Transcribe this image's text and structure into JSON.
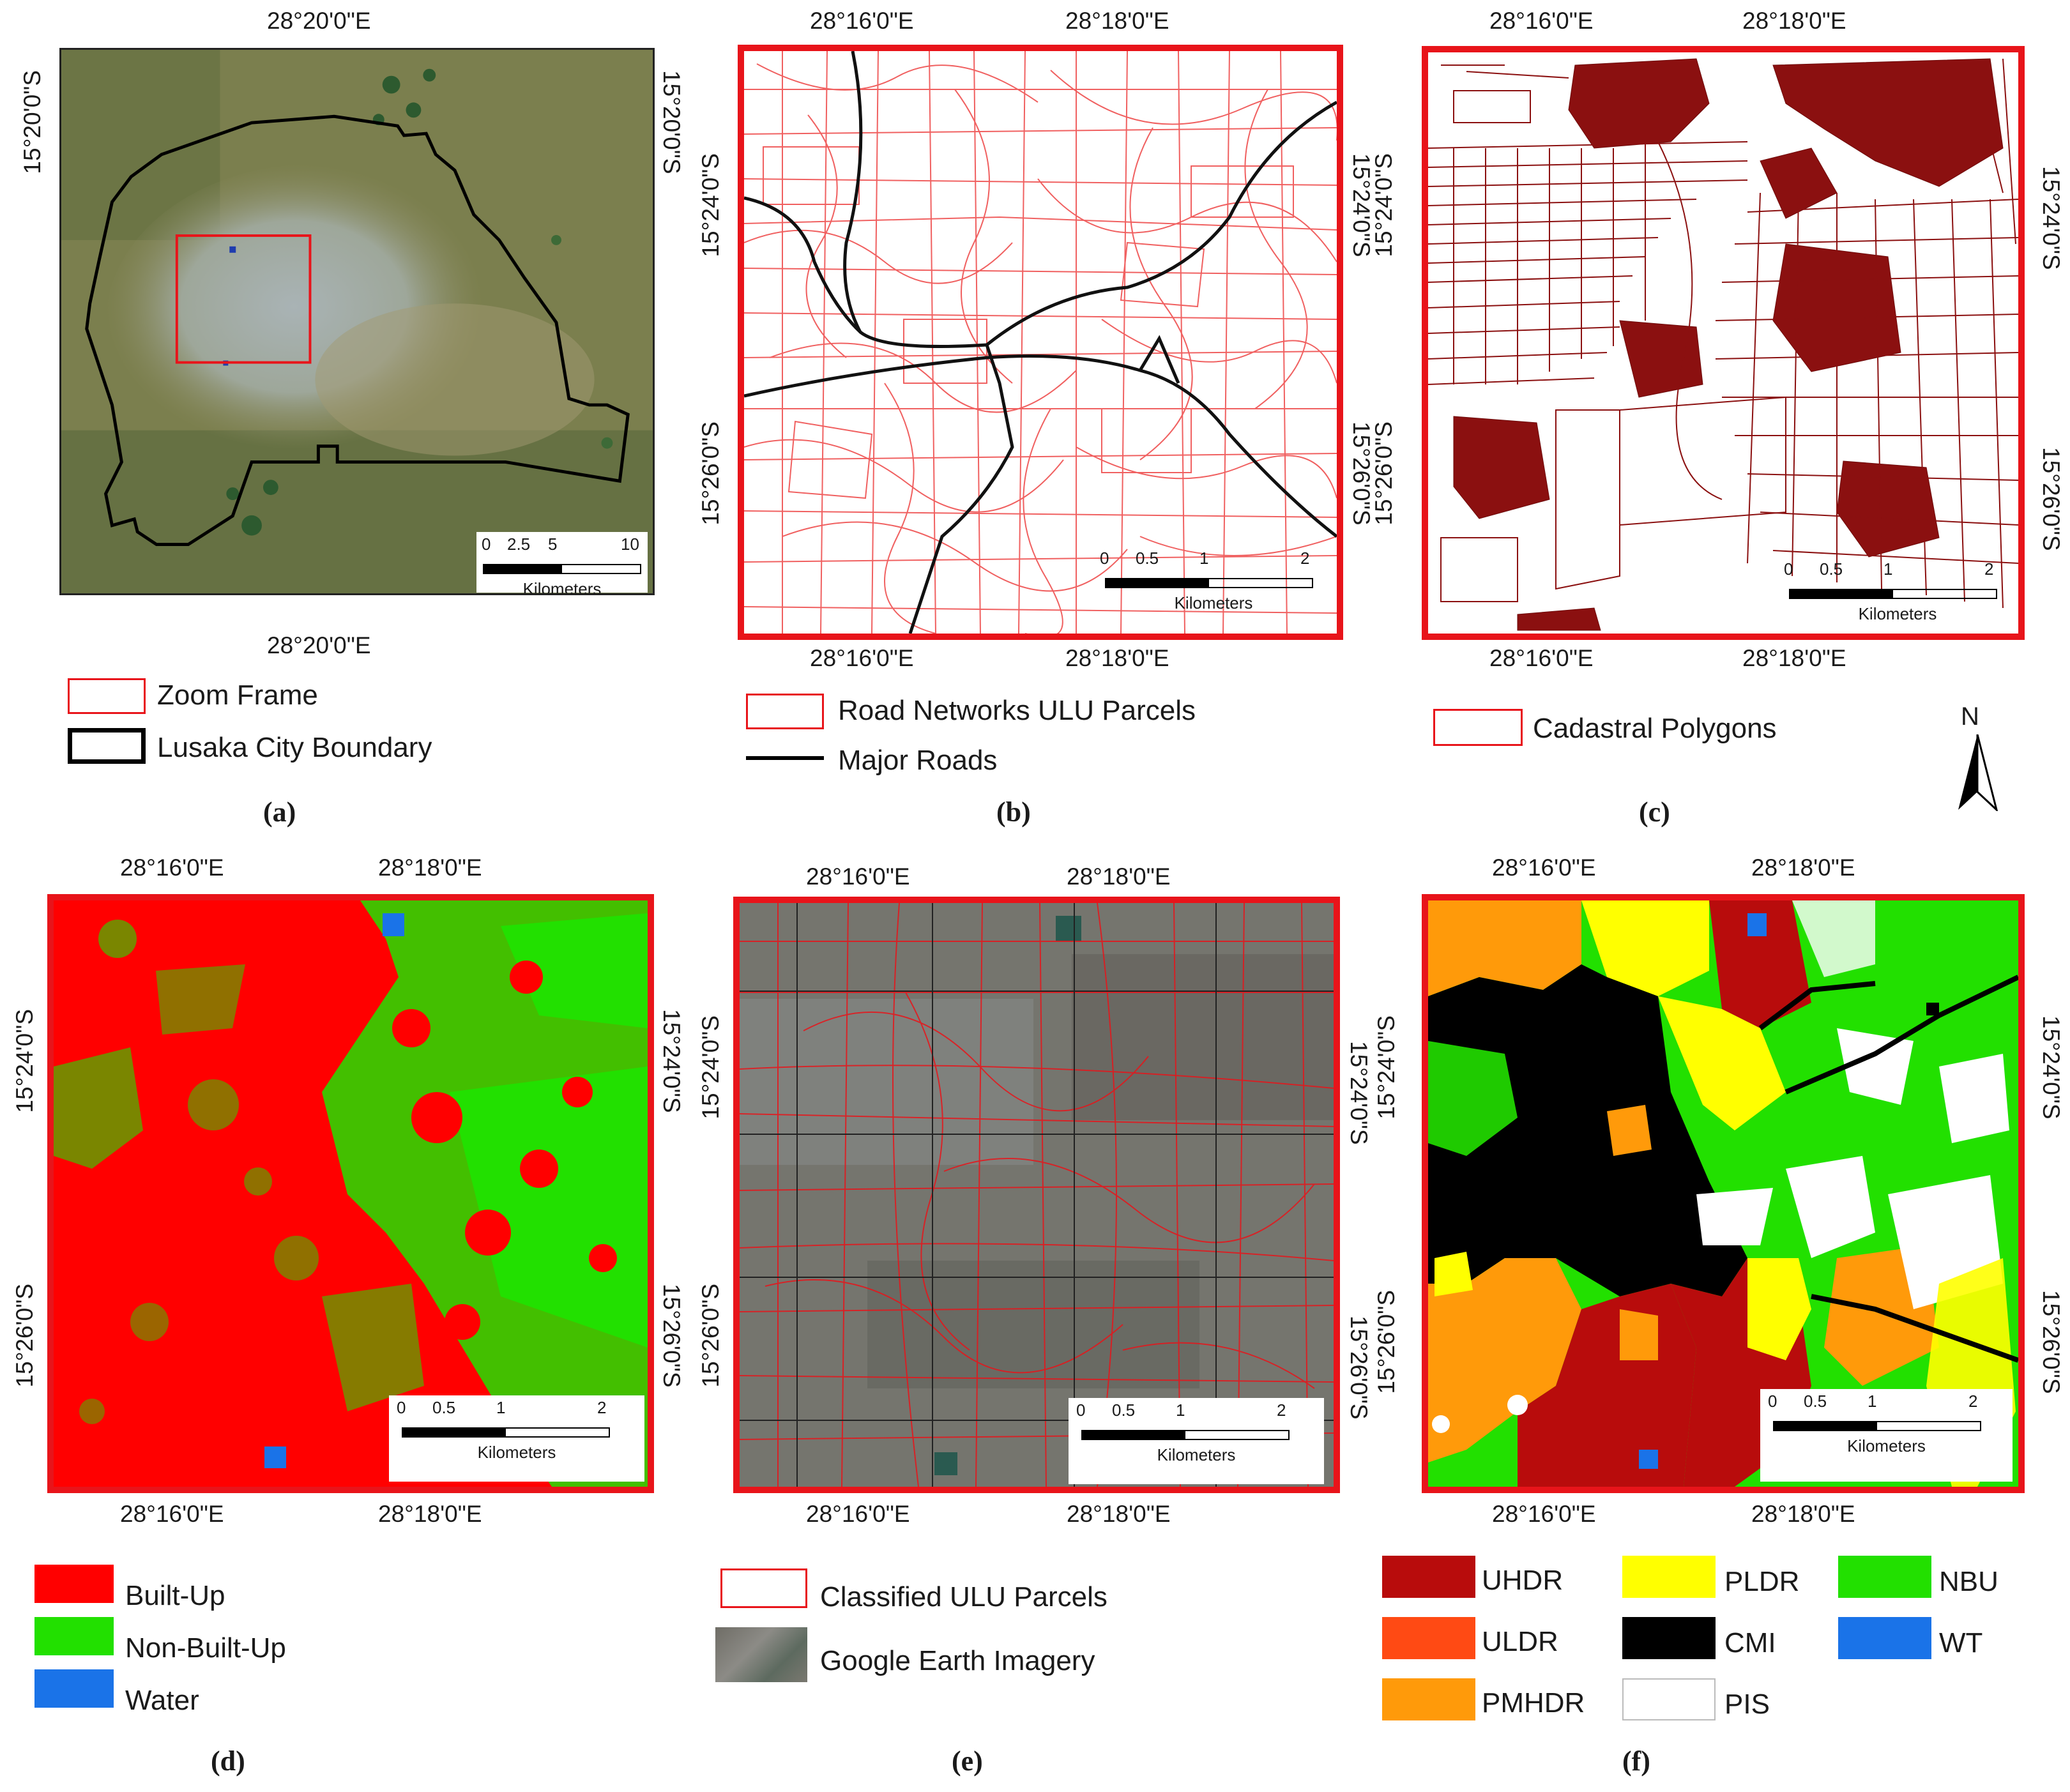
{
  "panels": {
    "a": {
      "label": "(a)",
      "top_coord": "28°20'0\"E",
      "bottom_coord": "28°20'0\"E",
      "left_coord": "15°20'0\"S",
      "right_coord": "15°20'0\"S",
      "scale": {
        "ticks": [
          "0",
          "2.5",
          "5",
          "10"
        ],
        "unit": "Kilometers"
      },
      "legend": [
        {
          "label": "Zoom Frame",
          "style": "red-outline"
        },
        {
          "label": "Lusaka City Boundary",
          "style": "black-outline"
        }
      ]
    },
    "b": {
      "label": "(b)",
      "top_coords": [
        "28°16'0\"E",
        "28°18'0\"E"
      ],
      "bottom_coords": [
        "28°16'0\"E",
        "28°18'0\"E"
      ],
      "left_coords": [
        "15°24'0\"S",
        "15°26'0\"S"
      ],
      "right_coords": [
        "15°24'0\"S",
        "15°26'0\"S"
      ],
      "scale": {
        "ticks": [
          "0",
          "0.5",
          "1",
          "2"
        ],
        "unit": "Kilometers"
      },
      "legend": [
        {
          "label": "Road Networks ULU Parcels",
          "style": "red-outline"
        },
        {
          "label": "Major Roads",
          "style": "black-line"
        }
      ]
    },
    "c": {
      "label": "(c)",
      "top_coords": [
        "28°16'0\"E",
        "28°18'0\"E"
      ],
      "bottom_coords": [
        "28°16'0\"E",
        "28°18'0\"E"
      ],
      "left_coords": [
        "15°24'0\"S",
        "15°26'0\"S"
      ],
      "right_coords": [
        "15°24'0\"S",
        "15°26'0\"S"
      ],
      "scale": {
        "ticks": [
          "0",
          "0.5",
          "1",
          "2"
        ],
        "unit": "Kilometers"
      },
      "legend": [
        {
          "label": "Cadastral Polygons",
          "style": "red-outline"
        }
      ],
      "north_label": "N"
    },
    "d": {
      "label": "(d)",
      "top_coords": [
        "28°16'0\"E",
        "28°18'0\"E"
      ],
      "bottom_coords": [
        "28°16'0\"E",
        "28°18'0\"E"
      ],
      "left_coords": [
        "15°24'0\"S",
        "15°26'0\"S"
      ],
      "right_coords": [
        "15°24'0\"S",
        "15°26'0\"S"
      ],
      "scale": {
        "ticks": [
          "0",
          "0.5",
          "1",
          "2"
        ],
        "unit": "Kilometers"
      },
      "legend": [
        {
          "label": "Built-Up",
          "color": "#ff0000"
        },
        {
          "label": "Non-Built-Up",
          "color": "#22e000"
        },
        {
          "label": "Water",
          "color": "#1a73e8"
        }
      ]
    },
    "e": {
      "label": "(e)",
      "top_coords": [
        "28°16'0\"E",
        "28°18'0\"E"
      ],
      "bottom_coords": [
        "28°16'0\"E",
        "28°18'0\"E"
      ],
      "left_coords": [
        "15°24'0\"S",
        "15°26'0\"S"
      ],
      "right_coords": [
        "15°24'0\"S",
        "15°26'0\"S"
      ],
      "scale": {
        "ticks": [
          "0",
          "0.5",
          "1",
          "2"
        ],
        "unit": "Kilometers"
      },
      "legend": [
        {
          "label": "Classified ULU Parcels",
          "style": "red-outline"
        },
        {
          "label": "Google Earth Imagery",
          "style": "imagery"
        }
      ]
    },
    "f": {
      "label": "(f)",
      "top_coords": [
        "28°16'0\"E",
        "28°18'0\"E"
      ],
      "bottom_coords": [
        "28°16'0\"E",
        "28°18'0\"E"
      ],
      "left_coords": [
        "15°24'0\"S",
        "15°26'0\"S"
      ],
      "right_coords": [
        "15°24'0\"S",
        "15°26'0\"S"
      ],
      "scale": {
        "ticks": [
          "0",
          "0.5",
          "1",
          "2"
        ],
        "unit": "Kilometers"
      },
      "legend": [
        {
          "label": "UHDR",
          "color": "#b80c0c"
        },
        {
          "label": "ULDR",
          "color": "#ff4a14"
        },
        {
          "label": "PMHDR",
          "color": "#ff9a0a"
        },
        {
          "label": "PLDR",
          "color": "#ffff00"
        },
        {
          "label": "CMI",
          "color": "#000000"
        },
        {
          "label": "PIS",
          "color": "#ffffff"
        },
        {
          "label": "NBU",
          "color": "#22e000"
        },
        {
          "label": "WT",
          "color": "#1a73e8"
        }
      ]
    }
  }
}
